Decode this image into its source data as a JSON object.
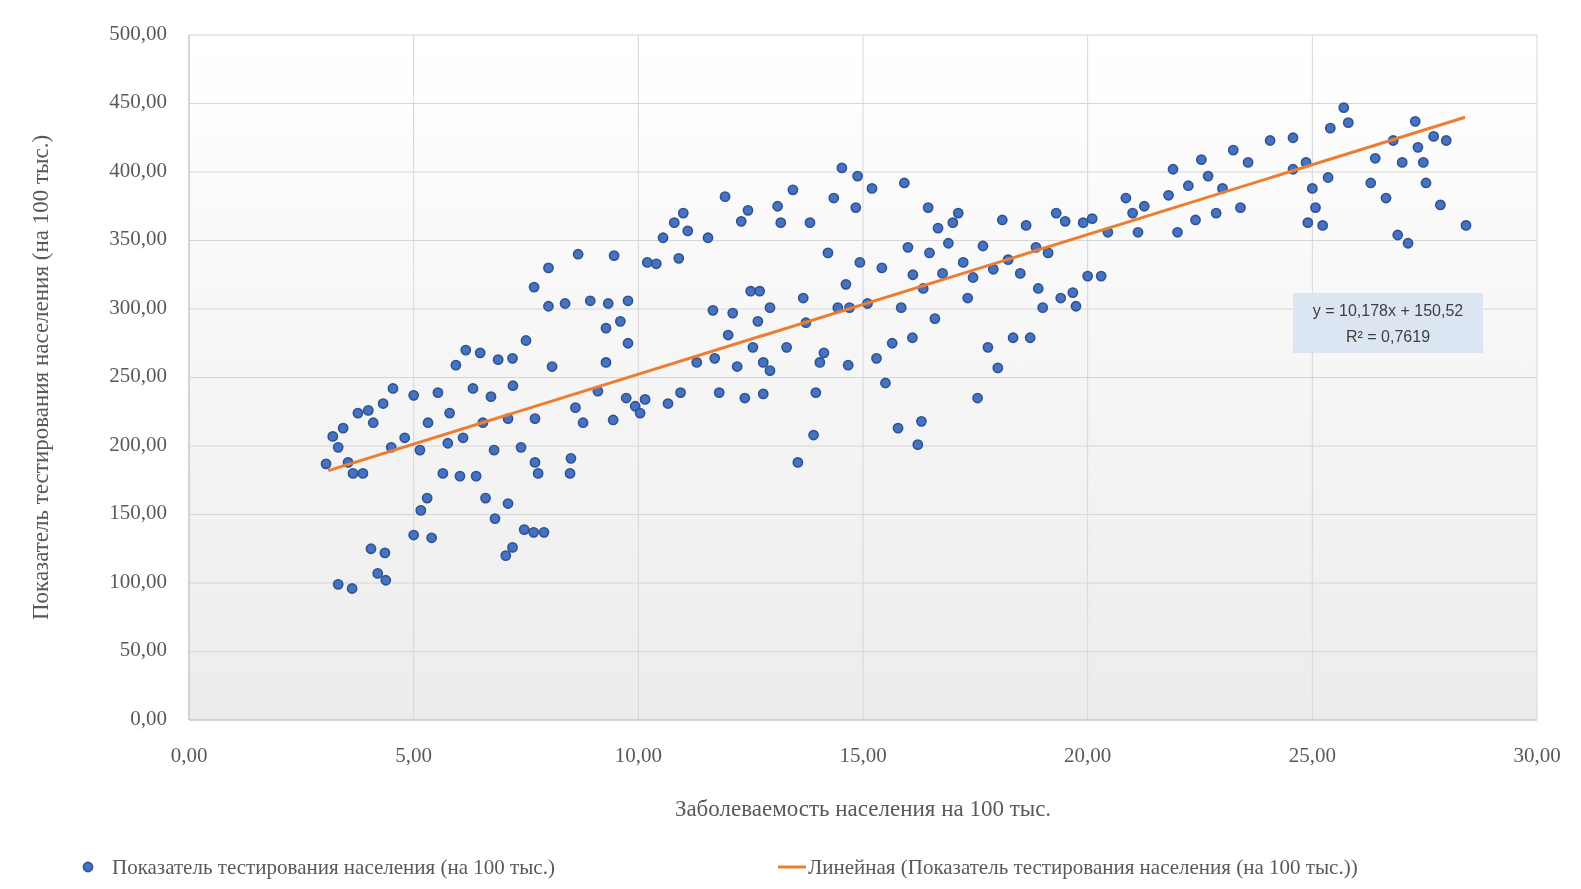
{
  "chart_data": {
    "type": "scatter",
    "xlabel": "Заболеваемость населения на 100 тыс.",
    "ylabel": "Показатель тестирования населения (на 100 тыс.)",
    "xlim": [
      0,
      30
    ],
    "ylim": [
      0,
      500
    ],
    "xticks": [
      {
        "value": 0,
        "label": "0,00"
      },
      {
        "value": 5,
        "label": "5,00"
      },
      {
        "value": 10,
        "label": "10,00"
      },
      {
        "value": 15,
        "label": "15,00"
      },
      {
        "value": 20,
        "label": "20,00"
      },
      {
        "value": 25,
        "label": "25,00"
      },
      {
        "value": 30,
        "label": "30,00"
      }
    ],
    "yticks": [
      {
        "value": 0,
        "label": "0,00"
      },
      {
        "value": 50,
        "label": "50,00"
      },
      {
        "value": 100,
        "label": "100,00"
      },
      {
        "value": 150,
        "label": "150,00"
      },
      {
        "value": 200,
        "label": "200,00"
      },
      {
        "value": 250,
        "label": "250,00"
      },
      {
        "value": 300,
        "label": "300,00"
      },
      {
        "value": 350,
        "label": "350,00"
      },
      {
        "value": 400,
        "label": "400,00"
      },
      {
        "value": 450,
        "label": "450,00"
      },
      {
        "value": 500,
        "label": "500,00"
      }
    ],
    "grid": true,
    "legend": "bottom",
    "annotations": [
      "y = 10,178x + 150,52",
      "R² = 0,7619"
    ],
    "series": [
      {
        "name": "Показатель тестирования населения (на 100 тыс.)",
        "type": "scatter",
        "marker": "circle",
        "color": "#4472c4",
        "x": [
          3.32,
          3.63,
          4.05,
          4.36,
          4.2,
          4.38,
          3.05,
          3.2,
          3.32,
          3.43,
          3.54,
          3.65,
          3.76,
          3.87,
          3.99,
          4.1,
          4.32,
          4.54,
          4.5,
          4.8,
          5.0,
          5.0,
          5.4,
          5.16,
          5.3,
          5.14,
          5.32,
          5.54,
          5.65,
          5.76,
          5.8,
          5.94,
          6.03,
          6.1,
          6.16,
          6.32,
          6.39,
          6.48,
          6.6,
          6.54,
          6.72,
          6.79,
          6.81,
          6.88,
          7.1,
          7.2,
          7.05,
          7.2,
          7.1,
          7.21,
          7.39,
          7.46,
          7.5,
          7.67,
          7.7,
          7.77,
          7.7,
          7.9,
          7.68,
          8.0,
          8.0,
          8.08,
          8.37,
          8.48,
          8.5,
          8.6,
          8.66,
          8.77,
          8.93,
          9.1,
          9.28,
          9.33,
          9.28,
          9.46,
          9.44,
          9.6,
          9.73,
          9.77,
          9.77,
          9.93,
          10.04,
          10.15,
          10.2,
          10.4,
          10.55,
          10.66,
          10.8,
          10.9,
          10.94,
          11.0,
          11.1,
          11.3,
          11.55,
          11.66,
          11.7,
          11.8,
          11.93,
          12.0,
          12.1,
          12.2,
          12.29,
          12.37,
          12.44,
          12.5,
          12.55,
          12.66,
          12.78,
          12.78,
          12.7,
          12.93,
          12.93,
          13.1,
          13.17,
          13.3,
          13.44,
          13.55,
          13.67,
          13.73,
          13.82,
          13.9,
          13.95,
          14.04,
          14.13,
          14.22,
          14.35,
          14.44,
          14.53,
          14.62,
          14.67,
          14.7,
          14.84,
          14.88,
          14.93,
          15.1,
          15.2,
          15.3,
          15.42,
          15.5,
          15.65,
          15.78,
          15.85,
          15.92,
          16.0,
          16.1,
          16.11,
          16.22,
          16.3,
          16.34,
          16.45,
          16.48,
          16.6,
          16.67,
          16.77,
          16.9,
          17.0,
          17.12,
          17.23,
          17.33,
          17.45,
          17.55,
          17.67,
          17.78,
          17.9,
          18.0,
          18.1,
          18.23,
          18.34,
          18.5,
          18.63,
          18.72,
          18.85,
          18.9,
          19.0,
          19.12,
          19.3,
          19.4,
          19.5,
          19.67,
          19.74,
          19.9,
          20.0,
          20.1,
          20.3,
          20.45,
          20.85,
          21.0,
          21.12,
          21.26,
          21.8,
          21.9,
          22.0,
          22.24,
          22.4,
          22.53,
          22.68,
          22.86,
          23.0,
          23.24,
          23.4,
          23.57,
          24.06,
          24.57,
          24.57,
          24.86,
          24.9,
          25.0,
          25.07,
          25.23,
          25.35,
          25.4,
          25.7,
          25.8,
          26.3,
          26.4,
          26.64,
          26.8,
          26.9,
          27.13,
          27.0,
          27.29,
          27.35,
          27.53,
          27.47,
          27.7,
          27.85,
          27.98,
          28.42
        ],
        "values": [
          99,
          96,
          125,
          122,
          107,
          102,
          187,
          207,
          199,
          213,
          188,
          180,
          224,
          180,
          226,
          217,
          231,
          242,
          199,
          206,
          237,
          135,
          133,
          153,
          162,
          197,
          217,
          239,
          180,
          202,
          224,
          259,
          178,
          206,
          270,
          242,
          178,
          268,
          162,
          217,
          236,
          197,
          147,
          263,
          220,
          264,
          120,
          126,
          158,
          244,
          199,
          139,
          277,
          137,
          188,
          180,
          220,
          137,
          316,
          330,
          302,
          258,
          304,
          180,
          191,
          228,
          340,
          217,
          306,
          240,
          261,
          304,
          286,
          339,
          219,
          291,
          235,
          306,
          275,
          229,
          224,
          234,
          334,
          333,
          352,
          231,
          363,
          337,
          239,
          370,
          357,
          261,
          352,
          299,
          264,
          239,
          382,
          281,
          297,
          258,
          364,
          235,
          372,
          313,
          272,
          291,
          261,
          238,
          313,
          301,
          255,
          375,
          363,
          272,
          387,
          188,
          308,
          290,
          363,
          208,
          239,
          261,
          268,
          341,
          381,
          301,
          403,
          318,
          259,
          301,
          374,
          397,
          334,
          304,
          388,
          264,
          330,
          246,
          275,
          213,
          301,
          392,
          345,
          279,
          325,
          201,
          218,
          315,
          374,
          341,
          293,
          359,
          326,
          348,
          363,
          370,
          334,
          308,
          323,
          235,
          346,
          272,
          329,
          257,
          365,
          336,
          279,
          326,
          361,
          279,
          345,
          315,
          301,
          341,
          370,
          308,
          364,
          312,
          302,
          363,
          324,
          366,
          324,
          356,
          381,
          370,
          356,
          375,
          383,
          402,
          356,
          390,
          365,
          409,
          397,
          370,
          388,
          416,
          374,
          407,
          423,
          425,
          402,
          407,
          363,
          388,
          374,
          361,
          396,
          432,
          447,
          436,
          392,
          410,
          381,
          423,
          354,
          348,
          407,
          437,
          418,
          392,
          407,
          426,
          376,
          423,
          361
        ]
      },
      {
        "name": "Линейная (Показатель тестирования населения (на 100 тыс.))",
        "type": "line",
        "color": "#ed7d31",
        "x": [
          3.1,
          28.4
        ],
        "values": [
          182,
          440
        ]
      }
    ]
  }
}
